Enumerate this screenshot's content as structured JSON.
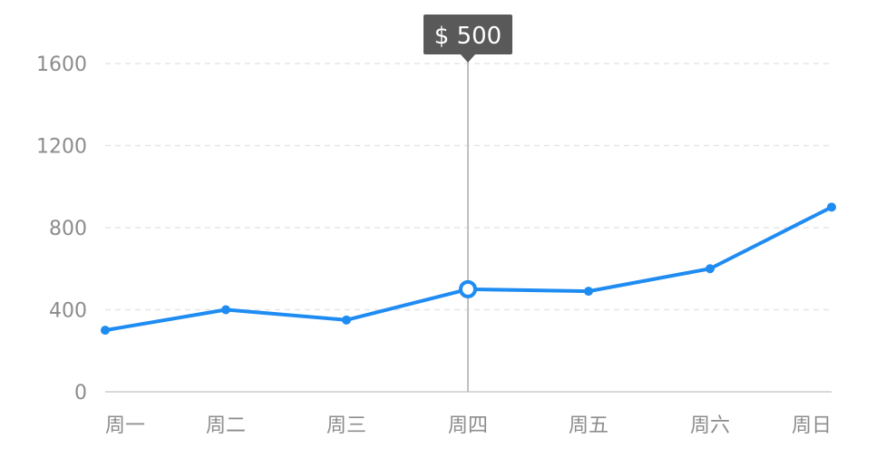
{
  "chart_data": {
    "type": "line",
    "categories": [
      "周一",
      "周二",
      "周三",
      "周四",
      "周五",
      "周六",
      "周日"
    ],
    "values": [
      300,
      400,
      350,
      500,
      490,
      600,
      900
    ],
    "ylim": [
      0,
      1600
    ],
    "yticks": [
      0,
      400,
      800,
      1200,
      1600
    ],
    "grid": true,
    "colors": {
      "line": "#1f8cf2",
      "grid": "#e6e6e6",
      "axis": "#d9d9d9",
      "crosshair": "#bfbfbf",
      "tooltip_bg": "#595959"
    },
    "active_index": 3,
    "tooltip": {
      "text": "$ 500"
    }
  }
}
